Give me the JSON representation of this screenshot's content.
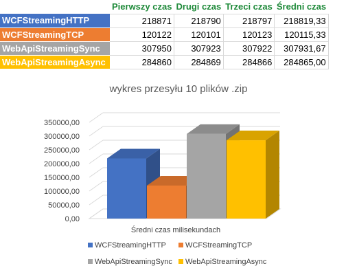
{
  "table": {
    "headers": [
      "",
      "Pierwszy czas",
      "Drugi czas",
      "Trzeci czas",
      "Średni czas"
    ],
    "rows": [
      {
        "name": "WCFStreamingHTTP",
        "color": "#4472C4",
        "values": [
          "218871",
          "218790",
          "218797",
          "218819,33"
        ]
      },
      {
        "name": "WCFStreamingTCP",
        "color": "#ED7D31",
        "values": [
          "120122",
          "120101",
          "120123",
          "120115,33"
        ]
      },
      {
        "name": "WebApiStreamingSync",
        "color": "#A5A5A5",
        "values": [
          "307950",
          "307923",
          "307922",
          "307931,67"
        ]
      },
      {
        "name": "WebApiStreamingAsync",
        "color": "#FFC000",
        "values": [
          "284860",
          "284869",
          "284866",
          "284865,00"
        ]
      }
    ]
  },
  "chart_data": {
    "type": "bar",
    "title": "wykres przesyłu 10 plików .zip",
    "xlabel": "Średni czas milisekundach",
    "ylabel": "",
    "categories": [
      "Średni czas milisekundach"
    ],
    "ylim": [
      0,
      350000
    ],
    "yticks": [
      "0,00",
      "50000,00",
      "100000,00",
      "150000,00",
      "200000,00",
      "250000,00",
      "300000,00",
      "350000,00"
    ],
    "grid": true,
    "legend_position": "bottom",
    "series": [
      {
        "name": "WCFStreamingHTTP",
        "color": "#4472C4",
        "values": [
          218819.33
        ]
      },
      {
        "name": "WCFStreamingTCP",
        "color": "#ED7D31",
        "values": [
          120115.33
        ]
      },
      {
        "name": "WebApiStreamingSync",
        "color": "#A5A5A5",
        "values": [
          307931.67
        ]
      },
      {
        "name": "WebApiStreamingAsync",
        "color": "#FFC000",
        "values": [
          284865.0
        ]
      }
    ]
  }
}
